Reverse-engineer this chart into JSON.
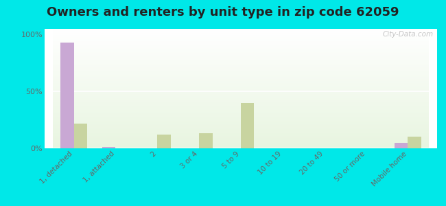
{
  "title": "Owners and renters by unit type in zip code 62059",
  "categories": [
    "1, detached",
    "1, attached",
    "2",
    "3 or 4",
    "5 to 9",
    "10 to 19",
    "20 to 49",
    "50 or more",
    "Mobile home"
  ],
  "owner_values": [
    93,
    1,
    0,
    0,
    0,
    0,
    0,
    0,
    5
  ],
  "renter_values": [
    22,
    0,
    12,
    13,
    40,
    0,
    0,
    0,
    10
  ],
  "owner_color": "#c9a8d4",
  "renter_color": "#c8d4a0",
  "bg_plot_top": "#ffffff",
  "bg_plot_bottom": "#e8f5e0",
  "bg_outer": "#00e8e8",
  "ylabel_ticks": [
    0,
    50,
    100
  ],
  "ylabel_labels": [
    "0%",
    "50%",
    "100%"
  ],
  "bar_width": 0.32,
  "watermark": "City-Data.com",
  "title_fontsize": 13,
  "tick_fontsize": 7.5,
  "legend_fontsize": 9
}
